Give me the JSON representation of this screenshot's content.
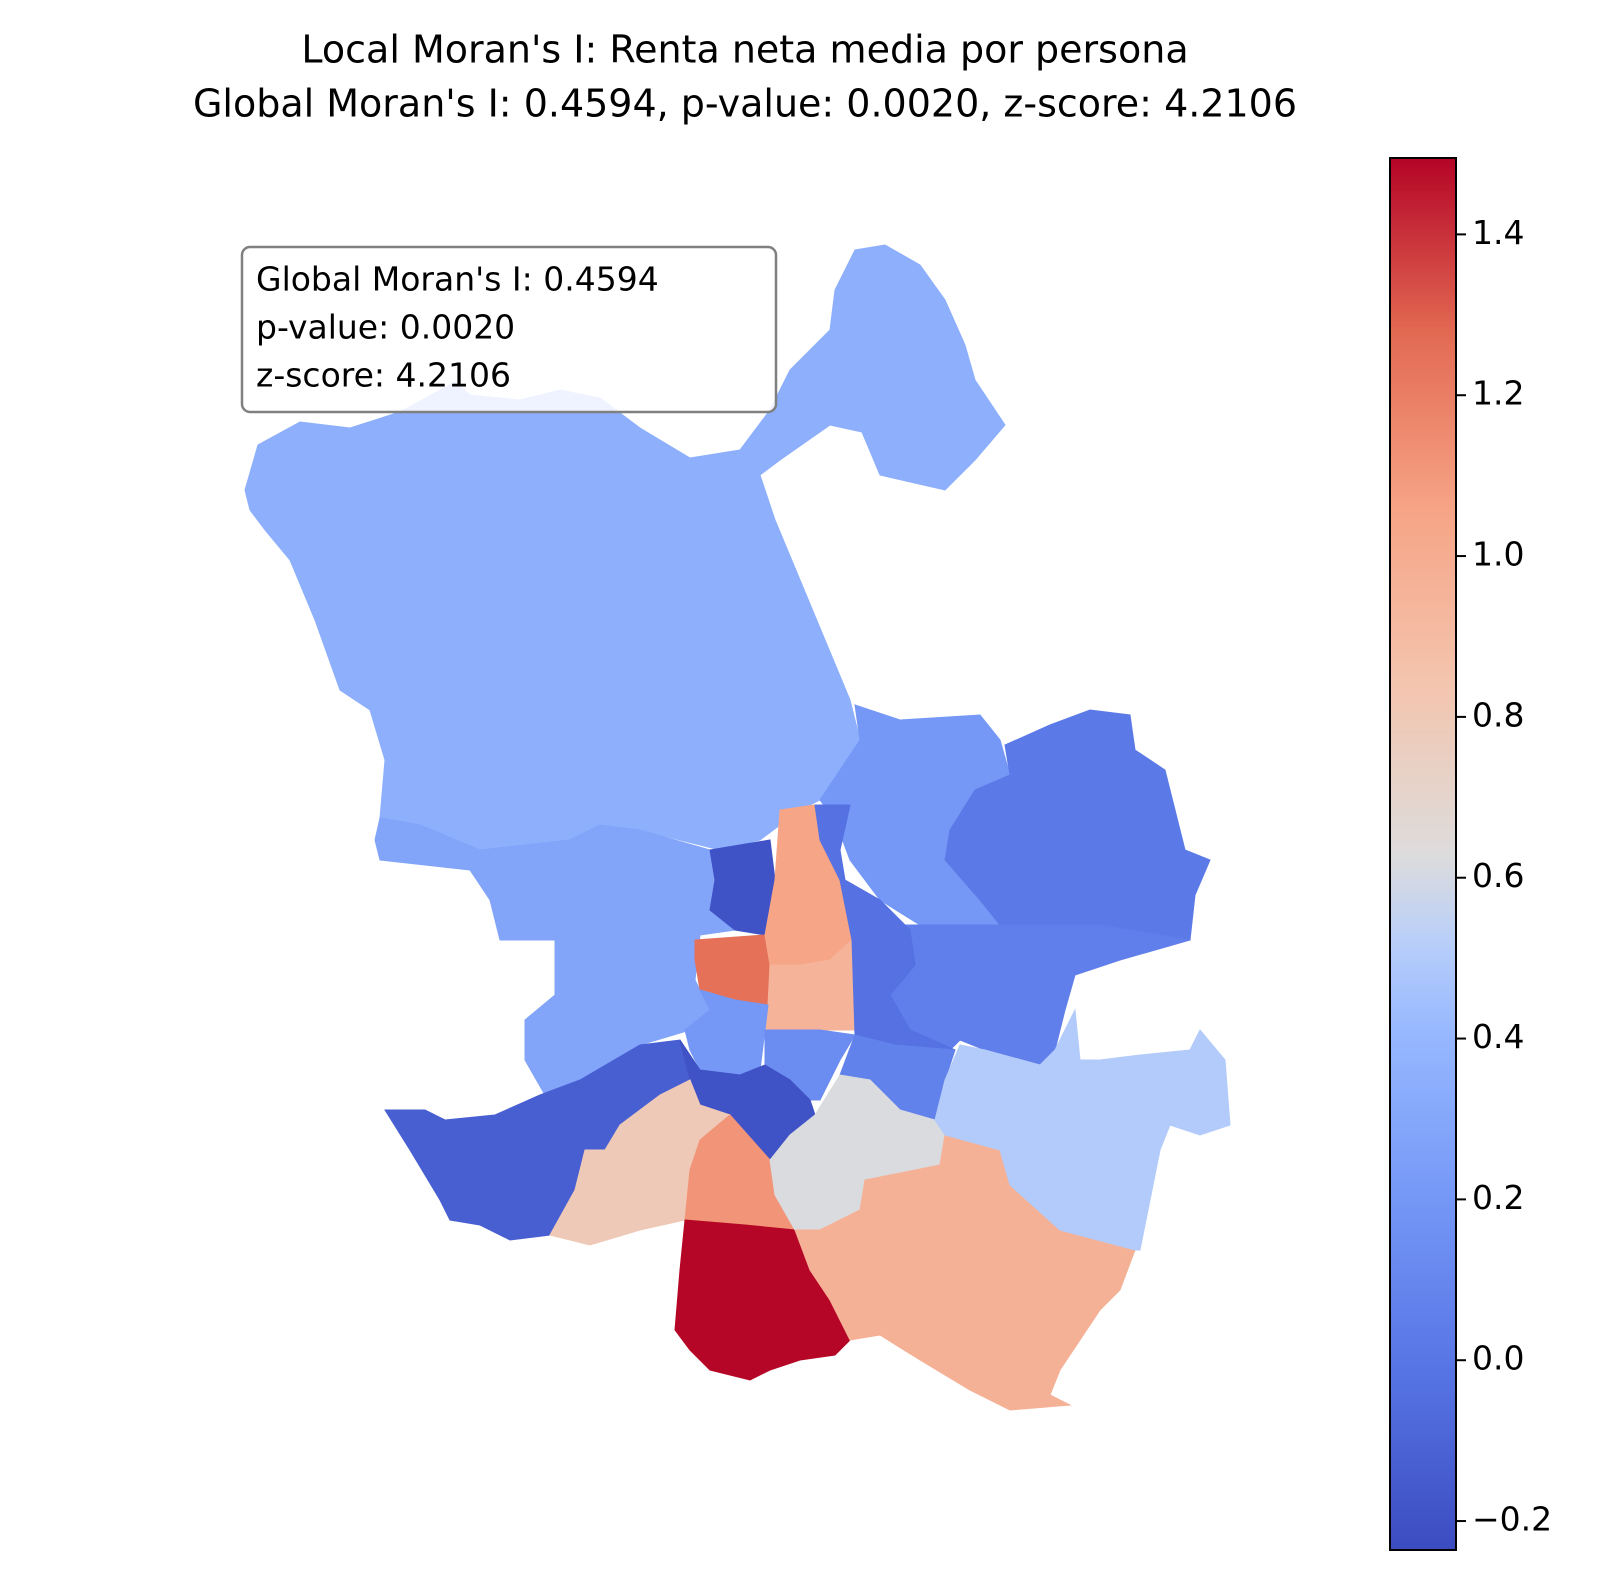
{
  "chart_data": {
    "type": "choropleth",
    "title": "Local Moran's I: Renta neta media por persona",
    "subtitle": "Global Moran's I: 0.4594, p-value: 0.0020, z-score: 4.2106",
    "annotation": [
      "Global Moran's I: 0.4594",
      "p-value: 0.0020",
      "z-score: 4.2106"
    ],
    "values": [
      0.35,
      0.28,
      0.2,
      0.02,
      0.05,
      -0.2,
      1.25,
      1.05,
      0.95,
      -0.03,
      0.2,
      0.13,
      0.07,
      -0.13,
      -0.2,
      0.8,
      1.12,
      1.49,
      0.62,
      0.97,
      0.5
    ],
    "colormap": "coolwarm",
    "clim": [
      -0.236,
      1.495
    ],
    "cticks": [
      {
        "value": -0.2,
        "label": "−0.2"
      },
      {
        "value": 0,
        "label": "0.0"
      },
      {
        "value": 0.2,
        "label": "0.2"
      },
      {
        "value": 0.4,
        "label": "0.4"
      },
      {
        "value": 0.6,
        "label": "0.6"
      },
      {
        "value": 0.8,
        "label": "0.8"
      },
      {
        "value": 1,
        "label": "1.0"
      },
      {
        "value": 1.2,
        "label": "1.2"
      },
      {
        "value": 1.4,
        "label": "1.4"
      }
    ]
  }
}
